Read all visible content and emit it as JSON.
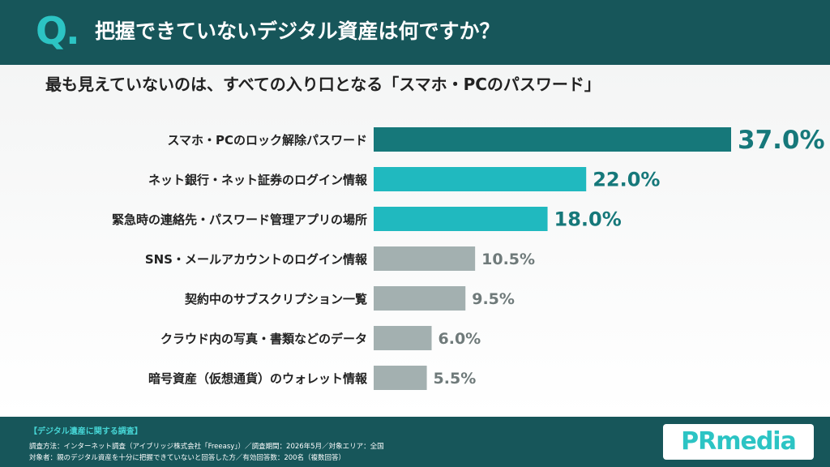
{
  "header": {
    "q_mark": "Q",
    "q_dot": ".",
    "title": "把握できていないデジタル資産は何ですか？"
  },
  "subtitle": "最も見えていないのは、すべての入り口となる「スマホ・PCのパスワード」",
  "colors": {
    "header_bg": "#17565a",
    "accent": "#2cc4c4",
    "top_bar": "#16787a",
    "highlight_bar": "#20b9bf",
    "gray_bar": "#a3b0b0",
    "top_label": "#16787a",
    "gray_label": "#6f7a7a"
  },
  "chart_data": {
    "type": "bar",
    "orientation": "horizontal",
    "unit": "%",
    "categories": [
      "スマホ・PCのロック解除パスワード",
      "ネット銀行・ネット証券のログイン情報",
      "緊急時の連絡先・パスワード管理アプリの場所",
      "SNS・メールアカウントのログイン情報",
      "契約中のサブスクリプション一覧",
      "クラウド内の写真・書類などのデータ",
      "暗号資産（仮想通貨）のウォレット情報"
    ],
    "values": [
      37.0,
      22.0,
      18.0,
      10.5,
      9.5,
      6.0,
      5.5
    ],
    "value_labels": [
      "37.0%",
      "22.0%",
      "18.0%",
      "10.5%",
      "9.5%",
      "6.0%",
      "5.5%"
    ],
    "bar_colors": [
      "#16787a",
      "#20b9bf",
      "#20b9bf",
      "#a3b0b0",
      "#a3b0b0",
      "#a3b0b0",
      "#a3b0b0"
    ],
    "xlim": [
      0,
      37.0
    ],
    "grid": false,
    "legend": "none"
  },
  "footer": {
    "heading": "【デジタル遺産に関する調査】",
    "line1": "調査方法：インターネット調査（アイブリッジ株式会社「Freeasy」）／調査期間：2026年5月／対象エリア：全国",
    "line2": "対象者：親のデジタル資産を十分に把握できていないと回答した方／有効回答数：200名（複数回答）",
    "logo": "PRmedia"
  }
}
